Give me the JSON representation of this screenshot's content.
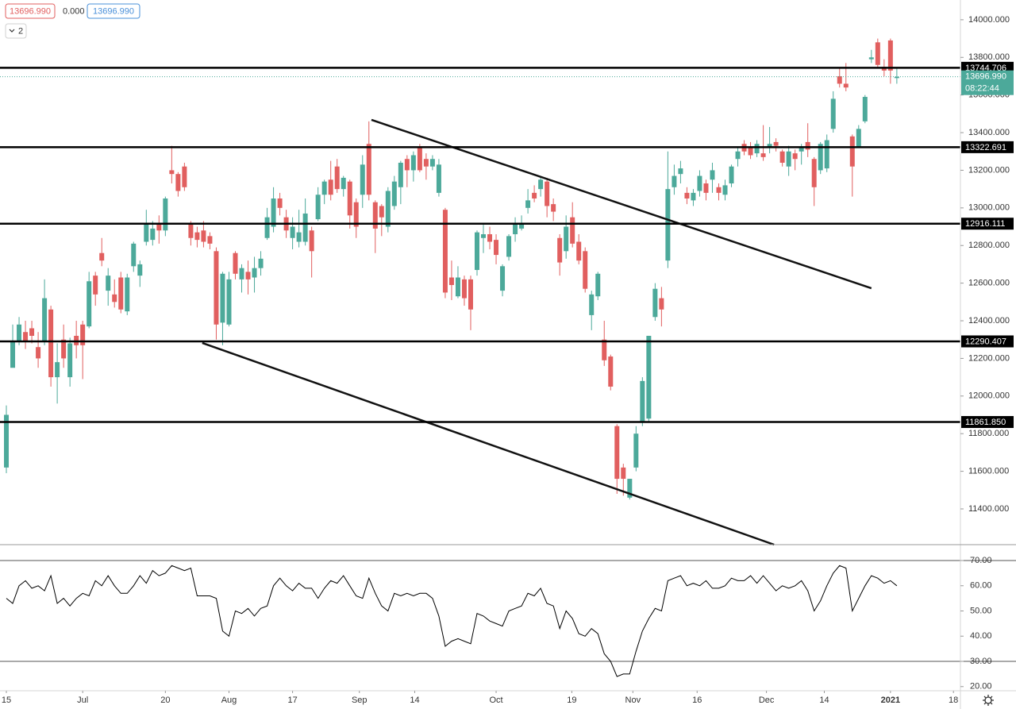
{
  "toolbar": {
    "price": "13696.990",
    "change": "0.000",
    "price_2": "13696.990",
    "indicator_count": "2"
  },
  "chart_data": [
    {
      "type": "candlestick",
      "colors": {
        "up": "#4ca99a",
        "down": "#e15f5f"
      },
      "xlim": [
        -1,
        150
      ],
      "ylim": [
        11210,
        14105
      ],
      "yticks": [
        {
          "value": 11400,
          "label": "11400.000"
        },
        {
          "value": 11600,
          "label": "11600.000"
        },
        {
          "value": 11800,
          "label": "11800.000"
        },
        {
          "value": 12000,
          "label": "12000.000"
        },
        {
          "value": 12200,
          "label": "12200.000"
        },
        {
          "value": 12400,
          "label": "12400.000"
        },
        {
          "value": 12600,
          "label": "12600.000"
        },
        {
          "value": 12800,
          "label": "12800.000"
        },
        {
          "value": 13000,
          "label": "13000.000"
        },
        {
          "value": 13200,
          "label": "13200.000"
        },
        {
          "value": 13400,
          "label": "13400.000"
        },
        {
          "value": 13600,
          "label": "13600.000"
        },
        {
          "value": 13800,
          "label": "13800.000"
        },
        {
          "value": 14000,
          "label": "14000.000"
        }
      ],
      "candles": {
        "open": [
          11620,
          12150,
          12290,
          12340,
          12360,
          12260,
          12290,
          12460,
          12100,
          12300,
          12100,
          12320,
          12380,
          12370,
          12640,
          12760,
          12560,
          12540,
          12630,
          12450,
          12690,
          12640,
          12820,
          12830,
          12920,
          12880,
          13200,
          13180,
          13220,
          12920,
          12870,
          12880,
          12850,
          12770,
          12390,
          12380,
          12760,
          12620,
          12660,
          12630,
          12680,
          12840,
          12900,
          13050,
          12950,
          12840,
          12820,
          12820,
          12880,
          12940,
          13070,
          13150,
          13220,
          13100,
          13140,
          13030,
          13070,
          13340,
          13030,
          13010,
          12900,
          13010,
          13110,
          13260,
          13200,
          13320,
          13260,
          13220,
          13080,
          12990,
          12630,
          12530,
          12620,
          12620,
          12670,
          12840,
          12860,
          12830,
          12560,
          12740,
          12860,
          12890,
          13000,
          13080,
          13100,
          13140,
          13020,
          12840,
          12770,
          12950,
          12820,
          12770,
          12430,
          12530,
          12300,
          12210,
          11840,
          11620,
          11460,
          11620,
          11860,
          11880,
          12420,
          12520,
          12720,
          13110,
          13180,
          13080,
          13040,
          13090,
          13130,
          13150,
          13110,
          13070,
          13130,
          13260,
          13340,
          13320,
          13290,
          13290,
          13320,
          13350,
          13300,
          13220,
          13290,
          13300,
          13350,
          13260,
          13200,
          13210,
          13420,
          13700,
          13660,
          13380,
          13320,
          13460,
          13790,
          13880,
          13750,
          13890,
          13690
        ],
        "high": [
          11950,
          12380,
          12420,
          12400,
          12400,
          12340,
          12620,
          12480,
          12280,
          12380,
          12310,
          12400,
          12400,
          12660,
          12660,
          12840,
          12680,
          12620,
          12660,
          12650,
          12820,
          12720,
          12990,
          12930,
          12960,
          13060,
          13330,
          13190,
          13240,
          12930,
          12900,
          12930,
          12870,
          12790,
          12660,
          12660,
          12770,
          12700,
          12720,
          12740,
          12770,
          13000,
          13110,
          13080,
          12990,
          12950,
          12990,
          13050,
          12900,
          13110,
          13150,
          13250,
          13260,
          13170,
          13150,
          13050,
          13280,
          13460,
          13040,
          13020,
          13110,
          13170,
          13250,
          13280,
          13300,
          13340,
          13290,
          13280,
          13260,
          13000,
          12720,
          12690,
          12640,
          12640,
          12880,
          12910,
          12900,
          12860,
          12700,
          12860,
          12950,
          12960,
          13100,
          13120,
          13170,
          13160,
          13050,
          12860,
          12960,
          13030,
          12860,
          12790,
          12560,
          12660,
          12400,
          12220,
          11850,
          11640,
          11560,
          11840,
          12100,
          12320,
          12600,
          12580,
          13300,
          13230,
          13250,
          13110,
          13100,
          13200,
          13150,
          13240,
          13130,
          13150,
          13230,
          13320,
          13360,
          13350,
          13360,
          13440,
          13430,
          13370,
          13310,
          13330,
          13310,
          13340,
          13450,
          13270,
          13350,
          13390,
          13620,
          13740,
          13770,
          13390,
          13440,
          13600,
          13840,
          13900,
          13790,
          13900,
          13740
        ],
        "low": [
          11590,
          12160,
          12270,
          12250,
          12280,
          12150,
          12270,
          12050,
          11960,
          12150,
          12050,
          12200,
          12090,
          12360,
          12480,
          12690,
          12480,
          12470,
          12440,
          12430,
          12660,
          12580,
          12800,
          12800,
          12810,
          12850,
          13130,
          13060,
          13090,
          12800,
          12790,
          12790,
          12780,
          12300,
          12270,
          12370,
          12620,
          12550,
          12540,
          12550,
          12640,
          12830,
          12870,
          12960,
          12840,
          12780,
          12790,
          12800,
          12630,
          12930,
          13020,
          13040,
          13080,
          13060,
          12890,
          12840,
          13000,
          13040,
          12760,
          12850,
          12870,
          12990,
          13020,
          13110,
          13140,
          13190,
          13150,
          13200,
          13060,
          12520,
          12510,
          12520,
          12480,
          12350,
          12640,
          12760,
          12780,
          12700,
          12530,
          12720,
          12820,
          12880,
          12970,
          13030,
          13060,
          12950,
          12930,
          12640,
          12730,
          12790,
          12700,
          12550,
          12350,
          12510,
          12160,
          12030,
          11480,
          11470,
          11450,
          11600,
          11840,
          11860,
          12400,
          12370,
          12680,
          13070,
          13130,
          13020,
          13010,
          13060,
          13040,
          13080,
          13040,
          13040,
          13110,
          13220,
          13280,
          13260,
          13270,
          13250,
          13290,
          13300,
          13220,
          13170,
          13200,
          13230,
          13270,
          13010,
          13180,
          13190,
          13400,
          13640,
          13620,
          13060,
          13320,
          13450,
          13770,
          13740,
          13700,
          13660,
          13660
        ],
        "close": [
          11900,
          12290,
          12380,
          12290,
          12320,
          12200,
          12520,
          12100,
          12180,
          12200,
          12280,
          12270,
          12270,
          12610,
          12540,
          12720,
          12640,
          12500,
          12460,
          12630,
          12810,
          12700,
          12920,
          12890,
          12880,
          13050,
          13180,
          13090,
          13110,
          12840,
          12830,
          12820,
          12810,
          12380,
          12650,
          12620,
          12650,
          12680,
          12620,
          12680,
          12730,
          12950,
          13050,
          13000,
          12880,
          12900,
          12870,
          12970,
          12770,
          13070,
          13140,
          13070,
          13100,
          13160,
          12960,
          12900,
          13230,
          13070,
          12890,
          12950,
          13090,
          13140,
          13240,
          13200,
          13280,
          13200,
          13220,
          13260,
          13230,
          12550,
          12590,
          12630,
          12520,
          12460,
          12870,
          12860,
          12820,
          12750,
          12690,
          12850,
          12920,
          12920,
          13040,
          13050,
          13150,
          13010,
          12980,
          12710,
          12900,
          12810,
          12720,
          12570,
          12540,
          12650,
          12190,
          12050,
          11560,
          11560,
          11560,
          11800,
          12080,
          12320,
          12570,
          12460,
          13100,
          13170,
          13210,
          13050,
          13080,
          13170,
          13080,
          13200,
          13080,
          13120,
          13220,
          13300,
          13300,
          13280,
          13340,
          13270,
          13340,
          13330,
          13240,
          13300,
          13260,
          13320,
          13310,
          13110,
          13340,
          13360,
          13580,
          13660,
          13640,
          13220,
          13420,
          13590,
          13800,
          13760,
          13730,
          13730,
          13696.99
        ]
      },
      "levels": [
        13744.706,
        13322.691,
        12916.111,
        12290.407,
        {
          "value": 11861.85,
          "label": "11861.850"
        }
      ],
      "trendlines": [
        [
          [
            57.4,
            13468
          ],
          [
            136,
            12573
          ]
        ],
        [
          [
            30.8,
            12282
          ],
          [
            120.7,
            11210
          ]
        ]
      ],
      "current_price": {
        "value": 13696.99,
        "label": "13696.990"
      },
      "countdown": "08:22:44"
    },
    {
      "type": "line",
      "color": "#000000",
      "xlim": [
        -1,
        150
      ],
      "ylim": [
        18.35,
        76.3
      ],
      "yticks": [
        {
          "value": 20,
          "label": "20.00"
        },
        {
          "value": 30,
          "label": "30.00"
        },
        {
          "value": 40,
          "label": "40.00"
        },
        {
          "value": 50,
          "label": "50.00"
        },
        {
          "value": 60,
          "label": "60.00"
        },
        {
          "value": 70,
          "label": "70.00"
        }
      ],
      "levels": [
        70,
        30
      ],
      "xticks": [
        {
          "value": 0,
          "label": "15"
        },
        {
          "value": 12,
          "label": "Jul"
        },
        {
          "value": 25,
          "label": "20"
        },
        {
          "value": 35,
          "label": "Aug"
        },
        {
          "value": 45,
          "label": "17"
        },
        {
          "value": 55.5,
          "label": "Sep"
        },
        {
          "value": 64.2,
          "label": "14"
        },
        {
          "value": 77,
          "label": "Oct"
        },
        {
          "value": 88.9,
          "label": "19"
        },
        {
          "value": 98.5,
          "label": "Nov"
        },
        {
          "value": 108.6,
          "label": "16"
        },
        {
          "value": 119.5,
          "label": "Dec"
        },
        {
          "value": 128.6,
          "label": "14"
        },
        {
          "value": 139,
          "label": "2021"
        },
        {
          "value": 148.9,
          "label": "18"
        }
      ],
      "values": [
        55,
        53,
        60,
        62,
        59,
        60,
        58,
        64,
        53,
        55,
        52,
        55,
        57,
        56,
        62,
        60,
        64,
        60,
        57,
        57,
        60,
        64,
        61,
        66,
        64,
        65,
        68,
        67,
        66,
        67,
        56,
        56,
        56,
        55,
        42,
        40,
        50,
        49,
        51,
        48,
        51,
        52,
        60,
        63,
        60,
        58,
        61,
        59,
        59,
        55,
        59,
        62,
        61,
        64,
        60,
        56,
        55,
        63,
        57,
        52,
        50,
        57,
        56,
        57,
        56,
        57,
        57,
        55,
        48,
        36,
        38,
        39,
        38,
        37,
        49,
        48,
        46,
        45,
        44,
        50,
        51,
        52,
        57,
        56,
        59,
        53,
        52,
        43,
        50,
        47,
        41,
        40,
        43,
        41,
        33,
        30,
        24,
        25,
        25,
        34,
        42,
        47,
        51,
        50,
        62,
        63,
        64,
        60,
        61,
        60,
        62,
        59,
        59,
        60,
        63,
        62,
        62,
        64,
        61,
        64,
        61,
        58,
        60,
        59,
        60,
        62,
        58,
        50,
        54,
        60,
        65,
        68,
        67,
        50,
        55,
        60,
        64,
        63,
        61,
        62,
        60
      ]
    }
  ]
}
